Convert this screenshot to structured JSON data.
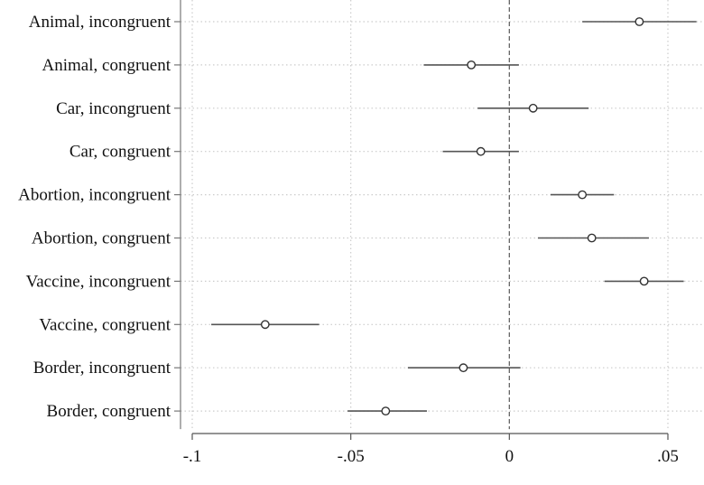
{
  "chart_data": {
    "type": "coefficient-plot",
    "title": "",
    "xlabel": "",
    "ylabel": "",
    "xlim": [
      -0.1,
      0.06
    ],
    "x_ticks": [
      -0.1,
      -0.05,
      0,
      0.05
    ],
    "x_tick_labels": [
      "-.1",
      "-.05",
      "0",
      ".05"
    ],
    "reference_line": 0,
    "grid": true,
    "colors": {
      "line": "#555555",
      "grid": "#cccccc",
      "ref": "#666666"
    },
    "rows": [
      {
        "label": "Animal, incongruent",
        "estimate": 0.041,
        "ci": [
          0.023,
          0.059
        ]
      },
      {
        "label": "Animal, congruent",
        "estimate": -0.012,
        "ci": [
          -0.027,
          0.003
        ]
      },
      {
        "label": "Car, incongruent",
        "estimate": 0.0075,
        "ci": [
          -0.01,
          0.025
        ]
      },
      {
        "label": "Car, congruent",
        "estimate": -0.009,
        "ci": [
          -0.021,
          0.003
        ]
      },
      {
        "label": "Abortion, incongruent",
        "estimate": 0.023,
        "ci": [
          0.013,
          0.033
        ]
      },
      {
        "label": "Abortion, congruent",
        "estimate": 0.026,
        "ci": [
          0.009,
          0.044
        ]
      },
      {
        "label": "Vaccine, incongruent",
        "estimate": 0.0425,
        "ci": [
          0.03,
          0.055
        ]
      },
      {
        "label": "Vaccine, congruent",
        "estimate": -0.077,
        "ci": [
          -0.094,
          -0.06
        ]
      },
      {
        "label": "Border, incongruent",
        "estimate": -0.0145,
        "ci": [
          -0.032,
          0.0035
        ]
      },
      {
        "label": "Border, congruent",
        "estimate": -0.039,
        "ci": [
          -0.051,
          -0.026
        ]
      }
    ]
  }
}
